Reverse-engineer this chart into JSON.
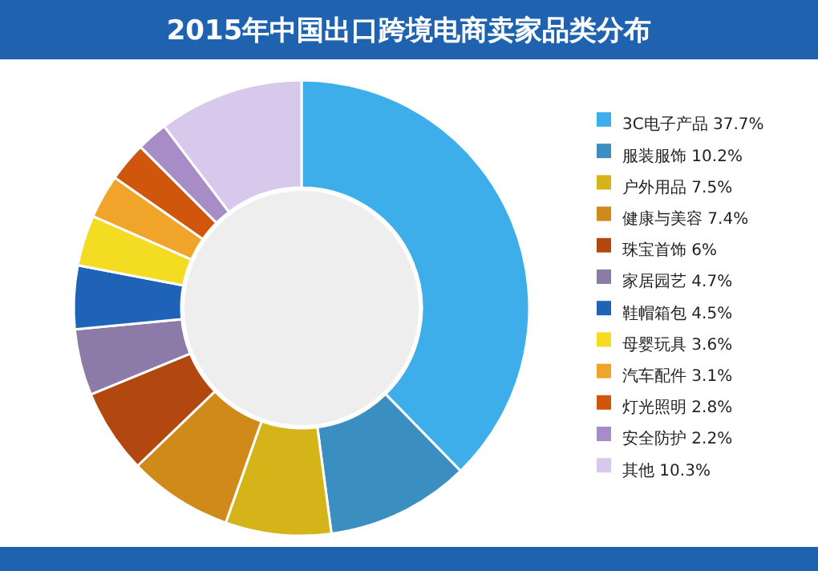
{
  "chart_data": {
    "type": "donut",
    "title": "2015年中国出口跨境电商卖家品类分布",
    "categories": [
      "3C电子产品",
      "服装服饰",
      "户外用品",
      "健康与美容",
      "珠宝首饰",
      "家居园艺",
      "鞋帽箱包",
      "母婴玩具",
      "汽车配件",
      "灯光照明",
      "安全防护",
      "其他"
    ],
    "values": [
      37.7,
      10.2,
      7.5,
      7.4,
      6,
      4.7,
      4.5,
      3.6,
      3.1,
      2.8,
      2.2,
      10.3
    ],
    "value_labels": [
      "37.7%",
      "10.2%",
      "7.5%",
      "7.4%",
      "6%",
      "4.7%",
      "4.5%",
      "3.6%",
      "3.1%",
      "2.8%",
      "2.2%",
      "10.3%"
    ],
    "colors": [
      "#3daee9",
      "#3a8fc0",
      "#d4b418",
      "#d08a1a",
      "#b2470f",
      "#8c7aa8",
      "#1f63b8",
      "#f4dc22",
      "#f0a42a",
      "#d0560e",
      "#a88cc8",
      "#d8c8ec"
    ],
    "legend": "right"
  }
}
